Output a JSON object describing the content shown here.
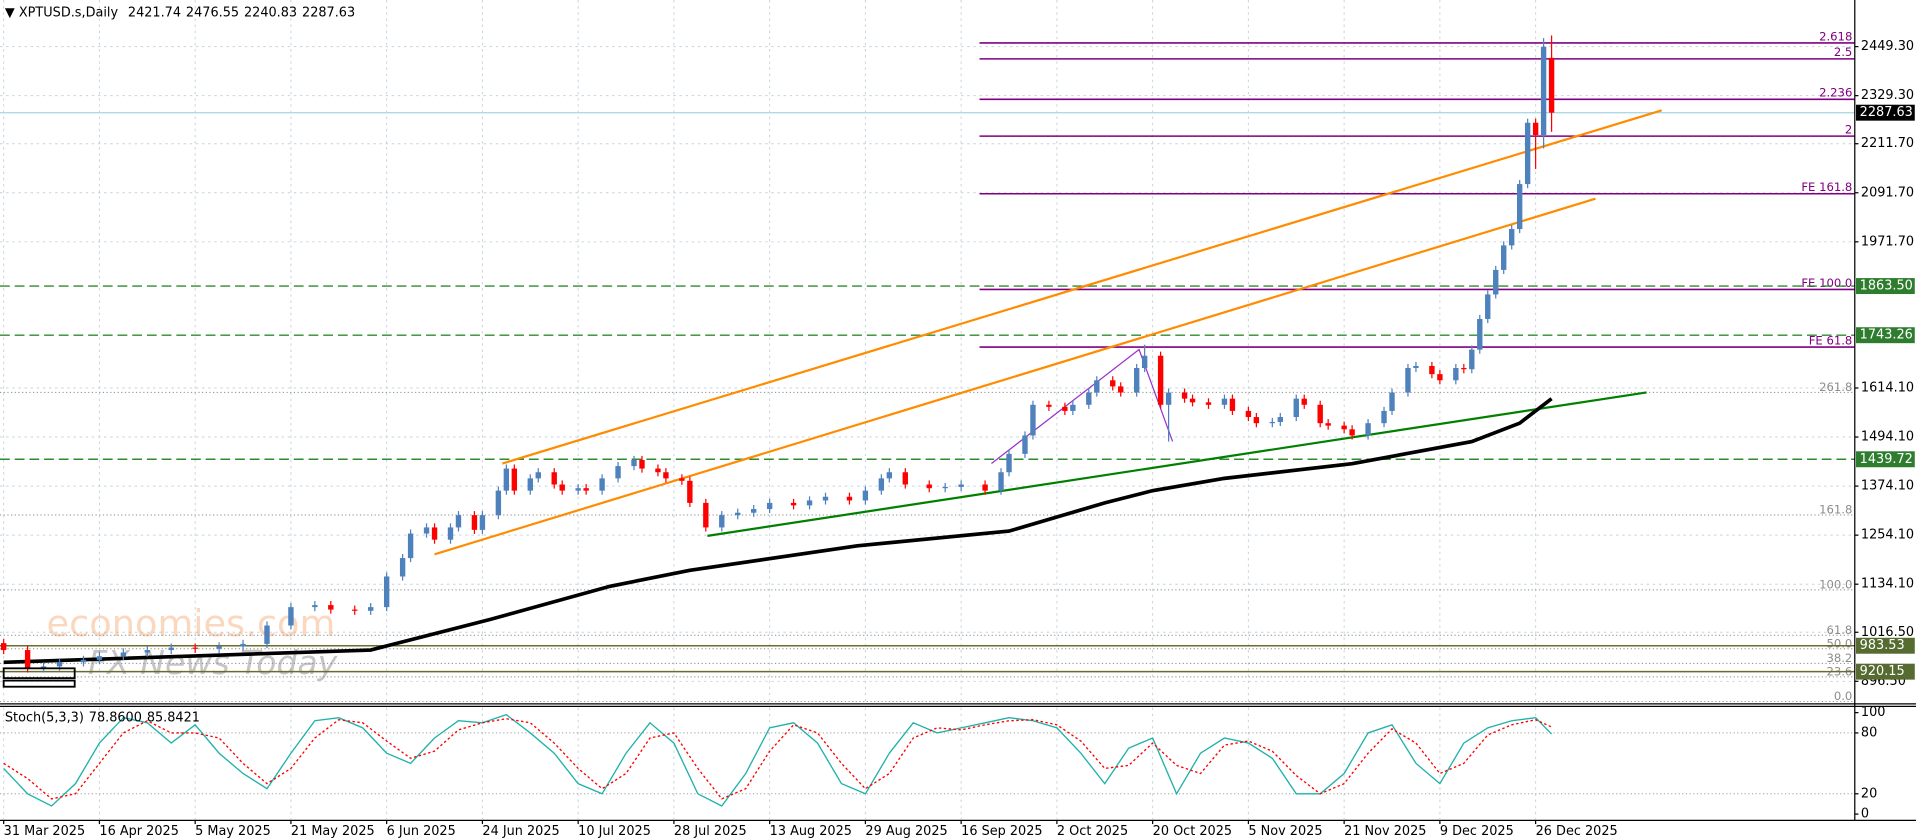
{
  "chart_data": {
    "type": "candlestick",
    "symbol": "XPTUSD.s,Daily",
    "ohlc_labels": [
      "2421.74",
      "2476.55",
      "2240.83",
      "2287.63"
    ],
    "x": [
      0,
      3,
      5,
      7,
      10,
      12,
      15,
      18,
      21,
      24,
      27,
      30,
      33,
      36,
      39,
      41,
      44,
      46,
      48,
      50,
      51,
      53,
      54,
      56,
      57,
      59,
      60,
      62,
      63,
      64,
      66,
      67,
      69,
      70,
      72,
      73,
      75,
      77,
      79,
      80,
      82,
      83,
      85,
      86,
      88,
      90,
      92,
      94,
      96,
      99,
      101,
      103,
      106,
      108,
      110,
      111,
      113,
      116,
      118,
      120,
      123,
      125,
      126,
      128,
      129,
      131,
      133,
      134,
      136,
      137,
      139,
      140,
      142,
      143,
      145,
      146,
      148,
      149,
      151,
      153,
      154,
      156,
      157,
      159,
      160,
      162,
      163,
      165,
      166,
      168,
      169,
      171,
      173,
      174,
      176,
      177,
      179,
      180,
      182,
      183,
      184,
      185,
      186,
      187,
      188,
      189,
      190,
      191,
      192,
      193,
      194
    ],
    "open": [
      990,
      973,
      928,
      933,
      943,
      949,
      958,
      967,
      973,
      979,
      976,
      982,
      988,
      1033,
      1078,
      1083,
      1072,
      1069,
      1078,
      1153,
      1198,
      1258,
      1273,
      1243,
      1273,
      1303,
      1267,
      1303,
      1363,
      1417,
      1363,
      1393,
      1408,
      1378,
      1363,
      1369,
      1363,
      1393,
      1423,
      1438,
      1417,
      1408,
      1393,
      1387,
      1333,
      1273,
      1303,
      1309,
      1318,
      1333,
      1327,
      1339,
      1348,
      1339,
      1363,
      1393,
      1408,
      1378,
      1369,
      1372,
      1378,
      1363,
      1408,
      1453,
      1498,
      1573,
      1568,
      1558,
      1573,
      1603,
      1633,
      1618,
      1603,
      1663,
      1693,
      1573,
      1603,
      1588,
      1579,
      1573,
      1588,
      1558,
      1543,
      1528,
      1531,
      1543,
      1588,
      1573,
      1528,
      1522,
      1513,
      1498,
      1528,
      1558,
      1603,
      1663,
      1668,
      1648,
      1633,
      1663,
      1660,
      1708,
      1783,
      1843,
      1903,
      1963,
      2003,
      2113,
      2263,
      2233,
      2421.74
    ],
    "high": [
      1000,
      983,
      943,
      953,
      959,
      968,
      977,
      983,
      989,
      989,
      992,
      998,
      1043,
      1088,
      1093,
      1093,
      1082,
      1088,
      1163,
      1208,
      1268,
      1283,
      1283,
      1283,
      1313,
      1313,
      1313,
      1373,
      1427,
      1427,
      1403,
      1418,
      1418,
      1388,
      1379,
      1379,
      1403,
      1433,
      1448,
      1448,
      1427,
      1418,
      1403,
      1397,
      1343,
      1313,
      1319,
      1328,
      1343,
      1343,
      1349,
      1358,
      1358,
      1373,
      1403,
      1418,
      1418,
      1388,
      1382,
      1388,
      1388,
      1418,
      1463,
      1508,
      1583,
      1583,
      1578,
      1583,
      1613,
      1643,
      1643,
      1628,
      1673,
      1720,
      1703,
      1613,
      1613,
      1598,
      1589,
      1598,
      1598,
      1568,
      1553,
      1541,
      1553,
      1598,
      1598,
      1583,
      1538,
      1532,
      1523,
      1538,
      1568,
      1613,
      1673,
      1678,
      1678,
      1658,
      1673,
      1673,
      1718,
      1793,
      1853,
      1913,
      1973,
      2013,
      2123,
      2273,
      2273,
      2470,
      2476.55
    ],
    "low": [
      963,
      918,
      918,
      923,
      933,
      939,
      948,
      957,
      963,
      966,
      966,
      972,
      978,
      1023,
      1068,
      1062,
      1059,
      1059,
      1068,
      1143,
      1188,
      1248,
      1233,
      1233,
      1263,
      1257,
      1257,
      1293,
      1353,
      1353,
      1353,
      1383,
      1368,
      1353,
      1353,
      1353,
      1353,
      1383,
      1413,
      1407,
      1398,
      1383,
      1377,
      1323,
      1263,
      1263,
      1293,
      1299,
      1308,
      1317,
      1317,
      1329,
      1329,
      1329,
      1353,
      1383,
      1368,
      1359,
      1359,
      1362,
      1353,
      1353,
      1398,
      1443,
      1488,
      1558,
      1548,
      1548,
      1563,
      1593,
      1608,
      1593,
      1593,
      1653,
      1563,
      1483,
      1578,
      1569,
      1563,
      1563,
      1548,
      1533,
      1518,
      1518,
      1521,
      1533,
      1563,
      1518,
      1512,
      1503,
      1488,
      1488,
      1518,
      1548,
      1593,
      1653,
      1638,
      1623,
      1623,
      1650,
      1650,
      1698,
      1773,
      1833,
      1893,
      1953,
      1993,
      2103,
      2150,
      2200,
      2240.83
    ],
    "close": [
      973,
      928,
      933,
      943,
      949,
      958,
      967,
      973,
      979,
      976,
      982,
      988,
      1033,
      1078,
      1083,
      1072,
      1069,
      1078,
      1153,
      1198,
      1258,
      1273,
      1243,
      1273,
      1303,
      1267,
      1303,
      1363,
      1417,
      1363,
      1393,
      1408,
      1378,
      1363,
      1369,
      1363,
      1393,
      1423,
      1438,
      1417,
      1408,
      1393,
      1387,
      1333,
      1273,
      1303,
      1309,
      1318,
      1333,
      1327,
      1339,
      1348,
      1339,
      1363,
      1393,
      1408,
      1378,
      1369,
      1372,
      1378,
      1363,
      1408,
      1453,
      1498,
      1573,
      1568,
      1558,
      1573,
      1603,
      1633,
      1618,
      1603,
      1663,
      1693,
      1573,
      1603,
      1588,
      1579,
      1573,
      1588,
      1558,
      1543,
      1528,
      1531,
      1543,
      1588,
      1573,
      1528,
      1522,
      1513,
      1498,
      1528,
      1558,
      1603,
      1663,
      1668,
      1648,
      1633,
      1663,
      1660,
      1708,
      1783,
      1843,
      1903,
      1963,
      2003,
      2113,
      2263,
      2233,
      2449,
      2287.63
    ],
    "up_color": "#4f81bd",
    "down_color": "#ff0000",
    "xlim": [
      0,
      232
    ],
    "xticks": [
      {
        "value": 0,
        "label": "31 Mar 2025"
      },
      {
        "value": 12,
        "label": "16 Apr 2025"
      },
      {
        "value": 24,
        "label": "5 May 2025"
      },
      {
        "value": 36,
        "label": "21 May 2025"
      },
      {
        "value": 48,
        "label": "6 Jun 2025"
      },
      {
        "value": 60,
        "label": "24 Jun 2025"
      },
      {
        "value": 72,
        "label": "10 Jul 2025"
      },
      {
        "value": 84,
        "label": "28 Jul 2025"
      },
      {
        "value": 96,
        "label": "13 Aug 2025"
      },
      {
        "value": 108,
        "label": "29 Aug 2025"
      },
      {
        "value": 120,
        "label": "16 Sep 2025"
      },
      {
        "value": 132,
        "label": "2 Oct 2025"
      },
      {
        "value": 144,
        "label": "20 Oct 2025"
      },
      {
        "value": 156,
        "label": "5 Nov 2025"
      },
      {
        "value": 168,
        "label": "21 Nov 2025"
      },
      {
        "value": 180,
        "label": "9 Dec 2025"
      },
      {
        "value": 192,
        "label": "26 Dec 2025"
      }
    ],
    "ylim": [
      844.3,
      2548.3
    ],
    "yticks": [
      {
        "value": 2449.3,
        "label": "2449.30"
      },
      {
        "value": 2329.3,
        "label": "2329.30"
      },
      {
        "value": 2211.7,
        "label": "2211.70"
      },
      {
        "value": 2091.7,
        "label": "2091.70"
      },
      {
        "value": 1971.7,
        "label": "1971.70"
      },
      {
        "value": 1614.1,
        "label": "1614.10"
      },
      {
        "value": 1494.1,
        "label": "1494.10"
      },
      {
        "value": 1374.1,
        "label": "1374.10"
      },
      {
        "value": 1254.1,
        "label": "1254.10"
      },
      {
        "value": 1134.1,
        "label": "1134.10"
      },
      {
        "value": 1016.5,
        "label": "1016.50"
      },
      {
        "value": 896.5,
        "label": "896.50"
      }
    ],
    "grid": true,
    "moving_average": {
      "color": "#000000",
      "x": [
        0,
        46,
        61,
        76,
        86,
        107,
        126,
        138,
        144,
        153,
        169,
        184,
        190,
        194
      ],
      "values": [
        943,
        973,
        1048,
        1129,
        1168,
        1228,
        1264,
        1333,
        1363,
        1393,
        1429,
        1483,
        1528,
        1588
      ]
    },
    "trendlines": [
      {
        "color": "#ff8c00",
        "x": [
          62.5,
          207.8
        ],
        "values": [
          1429.3,
          2293.3
        ]
      },
      {
        "color": "#ff8c00",
        "x": [
          54,
          199.5
        ],
        "values": [
          1207.3,
          2077.3
        ]
      },
      {
        "color": "#008000",
        "x": [
          88.2,
          205.9
        ],
        "values": [
          1252.3,
          1603.3
        ]
      },
      {
        "color": "#9932cc",
        "x": [
          123.8,
          142.3,
          146.5
        ],
        "values": [
          1429.3,
          1708.3,
          1483.3
        ]
      }
    ],
    "levels": [
      {
        "value": 2287.63,
        "label": "2287.63",
        "style": "solid",
        "color": "#add8e6",
        "label_color": "#000000"
      },
      {
        "value": 1863.5,
        "label": "1863.50",
        "style": "dash",
        "color": "#2e8b2e",
        "label_color": "#2e7d2e"
      },
      {
        "value": 1743.26,
        "label": "1743.26",
        "style": "dash",
        "color": "#2e8b2e",
        "label_color": "#2e7d2e"
      },
      {
        "value": 1439.72,
        "label": "1439.72",
        "style": "dash",
        "color": "#2e8b2e",
        "label_color": "#2e7d2e"
      },
      {
        "value": 983.53,
        "label": "983.53",
        "style": "solid",
        "color": "#6b6b2a",
        "label_color": "#556b2f"
      },
      {
        "value": 920.15,
        "label": "920.15",
        "style": "solid",
        "color": "#6b6b2a",
        "label_color": "#556b2f"
      }
    ],
    "fib_expansion": {
      "color": "#800080",
      "x_start": 122.3,
      "levels": [
        {
          "value": 2458.3,
          "label": "2.618"
        },
        {
          "value": 2419.3,
          "label": "2.5"
        },
        {
          "value": 2320.3,
          "label": "2.236"
        },
        {
          "value": 2230.3,
          "label": "2"
        },
        {
          "value": 2089.3,
          "label": "FE 161.8"
        },
        {
          "value": 1855.3,
          "label": "FE 100.0"
        },
        {
          "value": 1714.3,
          "label": "FE 61.8"
        }
      ]
    },
    "fib_retracement": {
      "color": "#8c8c8c",
      "levels": [
        {
          "value": 1603.3,
          "label": "261.8"
        },
        {
          "value": 1303.3,
          "label": "161.8"
        },
        {
          "value": 1120.3,
          "label": "100.0"
        },
        {
          "value": 1009.3,
          "label": "61.8"
        },
        {
          "value": 976.3,
          "label": "50.0"
        },
        {
          "value": 940.3,
          "label": "38.2"
        },
        {
          "value": 907.3,
          "label": "23.6"
        },
        {
          "value": 847.3,
          "label": "0.0"
        }
      ]
    },
    "watermark": [
      "economies.com",
      "FX News Today"
    ],
    "indicator": {
      "type": "line",
      "label": "Stoch(5,3,3)",
      "value_labels": [
        "78.8600",
        "85.8421"
      ],
      "x": [
        0,
        3,
        6,
        9,
        12,
        15,
        18,
        21,
        24,
        27,
        30,
        33,
        36,
        39,
        42,
        45,
        48,
        51,
        54,
        57,
        60,
        63,
        66,
        69,
        72,
        75,
        78,
        81,
        84,
        87,
        90,
        93,
        96,
        99,
        102,
        105,
        108,
        111,
        114,
        117,
        120,
        123,
        126,
        129,
        132,
        135,
        138,
        141,
        144,
        147,
        150,
        153,
        156,
        159,
        162,
        165,
        168,
        171,
        174,
        177,
        180,
        183,
        186,
        189,
        192,
        194
      ],
      "series": [
        {
          "color": "#20b2aa",
          "values": [
            45,
            20,
            8,
            30,
            70,
            95,
            90,
            70,
            88,
            60,
            40,
            25,
            60,
            92,
            95,
            85,
            60,
            50,
            75,
            92,
            90,
            98,
            80,
            60,
            30,
            20,
            60,
            90,
            70,
            20,
            8,
            40,
            85,
            90,
            70,
            30,
            20,
            60,
            90,
            80,
            85,
            90,
            95,
            92,
            85,
            60,
            30,
            65,
            75,
            20,
            60,
            75,
            70,
            55,
            20,
            20,
            40,
            80,
            88,
            50,
            30,
            70,
            85,
            92,
            95,
            78.86
          ]
        },
        {
          "color": "#ff0000",
          "dash": true,
          "values": [
            50,
            35,
            15,
            20,
            50,
            80,
            92,
            80,
            80,
            75,
            50,
            30,
            45,
            75,
            93,
            90,
            72,
            55,
            62,
            83,
            90,
            94,
            90,
            70,
            45,
            25,
            40,
            75,
            80,
            45,
            15,
            25,
            62,
            88,
            80,
            50,
            25,
            40,
            75,
            85,
            83,
            88,
            92,
            93,
            88,
            72,
            45,
            48,
            70,
            48,
            40,
            68,
            72,
            62,
            38,
            20,
            30,
            60,
            84,
            70,
            40,
            50,
            78,
            88,
            93,
            85.8421
          ]
        }
      ],
      "ylim": [
        -5,
        105
      ],
      "yticks": [
        0,
        20,
        80,
        100
      ]
    }
  }
}
